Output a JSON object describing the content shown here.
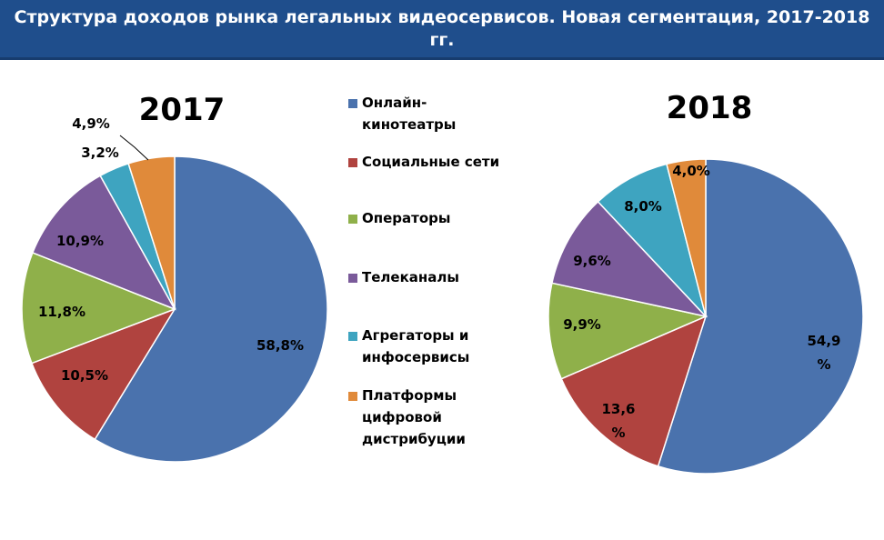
{
  "title": "Структура доходов рынка легальных видеосервисов. Новая сегментация, 2017-2018 гг.",
  "chart_data": [
    {
      "type": "pie",
      "title": "2017",
      "categories": [
        "Онлайн-кинотеатры",
        "Социальные сети",
        "Операторы",
        "Телеканалы",
        "Агрегаторы и инфосервисы",
        "Платформы цифровой дистрибуции"
      ],
      "values": [
        58.8,
        10.5,
        11.8,
        10.9,
        3.2,
        4.9
      ],
      "labels": [
        "58,8%",
        "10,5%",
        "11,8%",
        "10,9%",
        "3,2%",
        "4,9%"
      ]
    },
    {
      "type": "pie",
      "title": "2018",
      "categories": [
        "Онлайн-кинотеатры",
        "Социальные сети",
        "Операторы",
        "Телеканалы",
        "Агрегаторы и инфосервисы",
        "Платформы цифровой дистрибуции"
      ],
      "values": [
        54.9,
        13.6,
        9.9,
        9.6,
        8.0,
        4.0
      ],
      "labels": [
        "54,9 %",
        "13,6 %",
        "9,9%",
        "9,6%",
        "8,0%",
        "4,0%"
      ]
    }
  ],
  "legend": [
    {
      "lines": [
        "Онлайн-",
        "кинотеатры"
      ],
      "color": "#4a72ad"
    },
    {
      "lines": [
        "Социальные сети"
      ],
      "color": "#b0433f"
    },
    {
      "lines": [
        "Операторы"
      ],
      "color": "#8fb04a"
    },
    {
      "lines": [
        "Телеканалы"
      ],
      "color": "#7a5a9a"
    },
    {
      "lines": [
        "Агрегаторы и",
        "инфосервисы"
      ],
      "color": "#3ea4c0"
    },
    {
      "lines": [
        "Платформы",
        "цифровой",
        "дистрибуции"
      ],
      "color": "#e08a3a"
    }
  ],
  "colors": [
    "#4a72ad",
    "#b0433f",
    "#8fb04a",
    "#7a5a9a",
    "#3ea4c0",
    "#e08a3a"
  ]
}
